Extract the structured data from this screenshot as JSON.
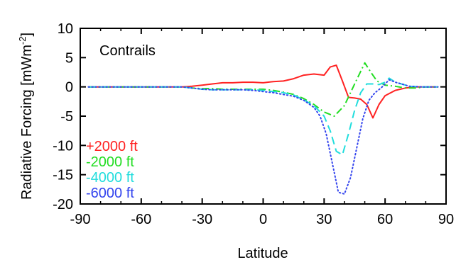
{
  "chart_data": {
    "type": "line",
    "title": "",
    "annotation": "Contrails",
    "xlabel": "Latitude",
    "ylabel_main": "Radiative Forcing [mWm",
    "ylabel_sup": "-2",
    "ylabel_close": "]",
    "xlim": [
      -90,
      90
    ],
    "ylim": [
      -20,
      10
    ],
    "xticks": [
      -90,
      -60,
      -30,
      0,
      30,
      60,
      90
    ],
    "yticks": [
      10,
      5,
      0,
      -5,
      -10,
      -15,
      -20
    ],
    "xtick_labels": [
      "-90",
      "-60",
      "-30",
      "0",
      "30",
      "60",
      "90"
    ],
    "ytick_labels": [
      "10",
      "5",
      "0",
      "-5",
      "-10",
      "-15",
      "-20"
    ],
    "grid": false,
    "legend_placement": "lower-left",
    "series": [
      {
        "name": "+2000 ft",
        "color": "#ff2222",
        "style": "solid",
        "x": [
          -86,
          -60,
          -40,
          -35,
          -30,
          -25,
          -20,
          -15,
          -10,
          -5,
          0,
          5,
          10,
          15,
          20,
          25,
          30,
          33,
          36,
          39,
          42,
          45,
          48,
          51,
          54,
          57,
          60,
          65,
          70,
          75,
          80,
          86
        ],
        "y": [
          0,
          0,
          0,
          0.1,
          0.3,
          0.5,
          0.7,
          0.7,
          0.8,
          0.8,
          0.7,
          0.9,
          1.0,
          1.4,
          2.0,
          2.2,
          2.0,
          3.4,
          3.7,
          1.0,
          -1.8,
          -1.9,
          -2.1,
          -3.0,
          -5.3,
          -3.0,
          -1.5,
          -0.6,
          -0.2,
          0,
          0,
          0
        ]
      },
      {
        "name": "-2000 ft",
        "color": "#22dd22",
        "style": "dashdot",
        "x": [
          -86,
          -60,
          -40,
          -35,
          -30,
          -25,
          -20,
          -15,
          -10,
          -5,
          0,
          5,
          10,
          15,
          20,
          25,
          30,
          35,
          40,
          45,
          50,
          53,
          56,
          60,
          65,
          70,
          75,
          80,
          86
        ],
        "y": [
          0,
          0,
          0,
          -0.2,
          -0.3,
          -0.3,
          -0.4,
          -0.4,
          -0.4,
          -0.4,
          -0.4,
          -0.6,
          -0.9,
          -1.3,
          -2.0,
          -3.0,
          -4.3,
          -5.0,
          -3.2,
          0.5,
          4.1,
          2.5,
          1.0,
          0.3,
          0.1,
          -0.2,
          -0.2,
          0,
          0
        ]
      },
      {
        "name": "-4000 ft",
        "color": "#22dddd",
        "style": "dashed",
        "x": [
          -86,
          -60,
          -40,
          -35,
          -30,
          -25,
          -20,
          -15,
          -10,
          -5,
          0,
          5,
          10,
          15,
          20,
          25,
          30,
          33,
          36,
          39,
          42,
          45,
          48,
          51,
          54,
          57,
          60,
          62,
          65,
          68,
          72,
          78,
          86
        ],
        "y": [
          0,
          0,
          0,
          -0.2,
          -0.4,
          -0.5,
          -0.5,
          -0.5,
          -0.5,
          -0.5,
          -0.6,
          -0.8,
          -1.0,
          -1.4,
          -2.2,
          -3.2,
          -5.0,
          -7.5,
          -11.0,
          -11.6,
          -8.0,
          -4.0,
          -1.0,
          0.5,
          0.5,
          0.4,
          0.8,
          1.5,
          0.8,
          0.5,
          0.1,
          0,
          0
        ]
      },
      {
        "name": "-6000 ft",
        "color": "#3344ee",
        "style": "dotted",
        "x": [
          -86,
          -60,
          -40,
          -35,
          -30,
          -25,
          -20,
          -15,
          -10,
          -5,
          0,
          5,
          10,
          15,
          20,
          25,
          28,
          31,
          34,
          37,
          40,
          43,
          46,
          49,
          52,
          55,
          58,
          62,
          65,
          68,
          72,
          78,
          86
        ],
        "y": [
          0,
          0,
          0,
          -0.2,
          -0.4,
          -0.5,
          -0.5,
          -0.5,
          -0.5,
          -0.6,
          -0.8,
          -1.0,
          -1.3,
          -1.6,
          -2.3,
          -3.5,
          -5.0,
          -8.0,
          -13.0,
          -18.0,
          -18.3,
          -15.5,
          -10.5,
          -5.5,
          -2.3,
          -1.0,
          -0.2,
          1.2,
          0.8,
          0.5,
          0.1,
          0,
          0
        ]
      }
    ]
  }
}
